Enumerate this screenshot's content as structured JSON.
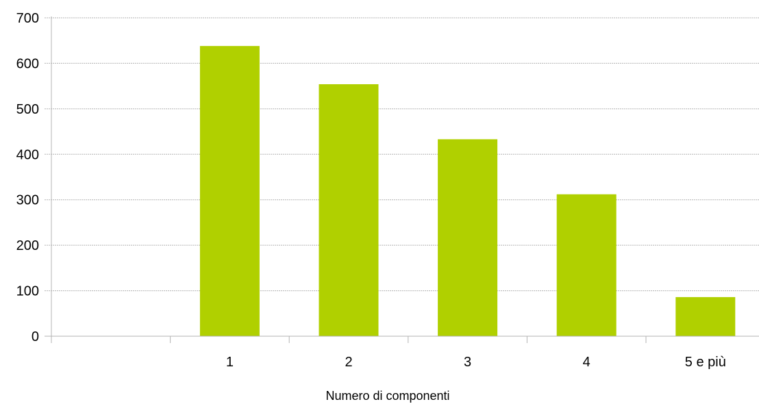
{
  "chart_data": {
    "type": "bar",
    "categories": [
      "",
      "1",
      "2",
      "3",
      "4",
      "5 e più"
    ],
    "values": [
      null,
      638,
      554,
      433,
      312,
      86
    ],
    "xlabel": "Numero di componenti",
    "ylabel": "",
    "ylim": [
      0,
      700
    ],
    "yticks": [
      0,
      100,
      200,
      300,
      400,
      500,
      600,
      700
    ],
    "grid": true,
    "bar_color": "#b0d000",
    "grid_color": "#b3b3b3",
    "axis_color": "#b3b3b3",
    "text_color": "#000000"
  }
}
